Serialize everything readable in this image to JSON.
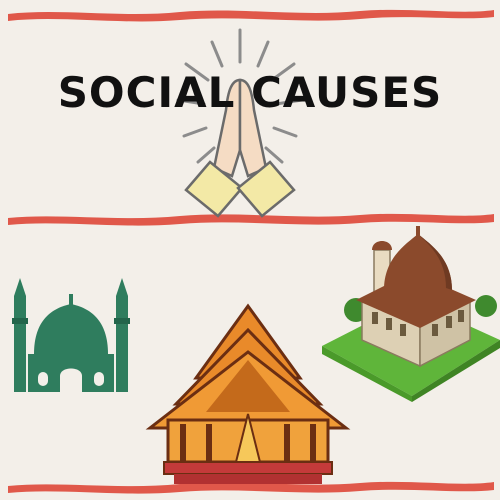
{
  "poster": {
    "title": "SOCIAL CAUSES"
  },
  "colors": {
    "background": "#f3efe9",
    "brush_stroke": "#e0584a",
    "title_text": "#111111",
    "hands_fill": "#f5dcc4",
    "hands_sleeve": "#f3e9a6",
    "rays": "#8c8c8c",
    "mosque_green": "#2f7d5e",
    "temple_orange": "#e98a2a",
    "dome_brown": "#8b4a2c",
    "grass": "#5fb53a"
  },
  "icons": {
    "praying_hands": "praying-hands-icon",
    "mosque": "mosque-icon",
    "temple": "thai-temple-icon",
    "domed_building": "domed-building-icon"
  }
}
